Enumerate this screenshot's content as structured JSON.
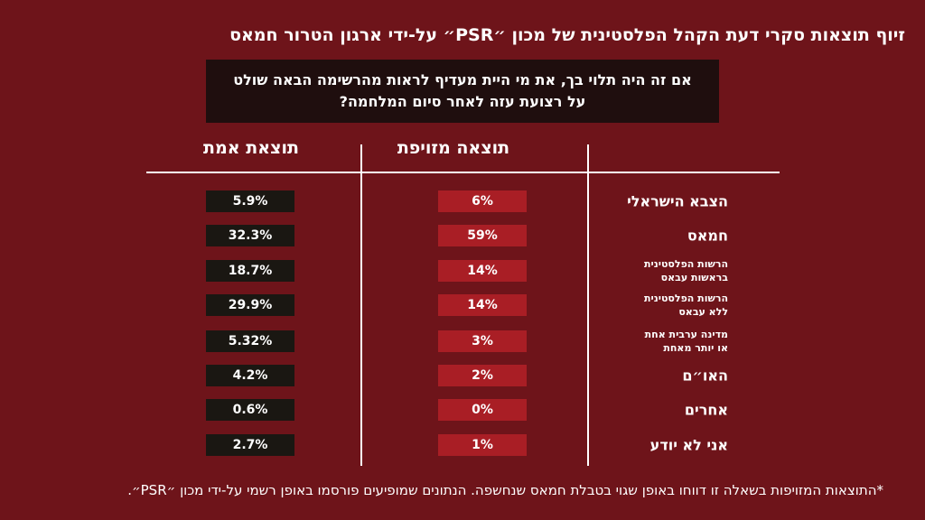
{
  "title": "זיוף תוצאות סקרי דעת הקהל הפלסטינית של מכון ״PSR״ על-ידי ארגון הטרור חמאס",
  "question": "אם זה היה תלוי בך, את מי היית מעדיף לראות מהרשימה הבאה שולט על רצועת עזה לאחר סיום המלחמה?",
  "footnote": "*התוצאות המזויפות בשאלה זו דווחו באופן שגוי בטבלת חמאס שנחשפה. הנתונים שמופיעים פורסמו באופן רשמי על-ידי מכון ״PSR״.",
  "colors": {
    "background": "#6e141a",
    "fake_cell": "#a91e25",
    "real_cell": "#1a1712",
    "question_box": "#1f0e0e"
  },
  "chart_data": {
    "type": "table",
    "columns": [
      "תוצאה מזויפת",
      "תוצאת אמת"
    ],
    "categories": [
      "הצבא הישראלי",
      "חמאס",
      "הרשות הפלסטינית בראשות עבאס",
      "הרשות הפלסטינית ללא עבאס",
      "מדינה ערבית אחת או יותר מאחת",
      "האו״ם",
      "אחרים",
      "אני לא יודע"
    ],
    "series": [
      {
        "name": "תוצאה מזויפת",
        "values": [
          6,
          59,
          14,
          14,
          3,
          2,
          0,
          1
        ],
        "labels": [
          "6%",
          "59%",
          "14%",
          "14%",
          "3%",
          "2%",
          "0%",
          "1%"
        ]
      },
      {
        "name": "תוצאת אמת",
        "values": [
          5.9,
          32.3,
          18.7,
          29.9,
          5.32,
          4.2,
          0.6,
          2.7
        ],
        "labels": [
          "5.9%",
          "32.3%",
          "18.7%",
          "29.9%",
          "5.32%",
          "4.2%",
          "0.6%",
          "2.7%"
        ]
      }
    ],
    "rows": [
      {
        "category_lines": [
          "הצבא הישראלי"
        ],
        "fake": "6%",
        "real": "5.9%"
      },
      {
        "category_lines": [
          "חמאס"
        ],
        "fake": "59%",
        "real": "32.3%"
      },
      {
        "category_lines": [
          "הרשות הפלסטינית",
          "בראשות עבאס"
        ],
        "fake": "14%",
        "real": "18.7%"
      },
      {
        "category_lines": [
          "הרשות הפלסטינית",
          "ללא עבאס"
        ],
        "fake": "14%",
        "real": "29.9%"
      },
      {
        "category_lines": [
          "מדינה ערבית אחת",
          "או יותר מאחת"
        ],
        "fake": "3%",
        "real": "5.32%"
      },
      {
        "category_lines": [
          "האו״ם"
        ],
        "fake": "2%",
        "real": "4.2%"
      },
      {
        "category_lines": [
          "אחרים"
        ],
        "fake": "0%",
        "real": "0.6%"
      },
      {
        "category_lines": [
          "אני לא יודע"
        ],
        "fake": "1%",
        "real": "2.7%"
      }
    ]
  }
}
